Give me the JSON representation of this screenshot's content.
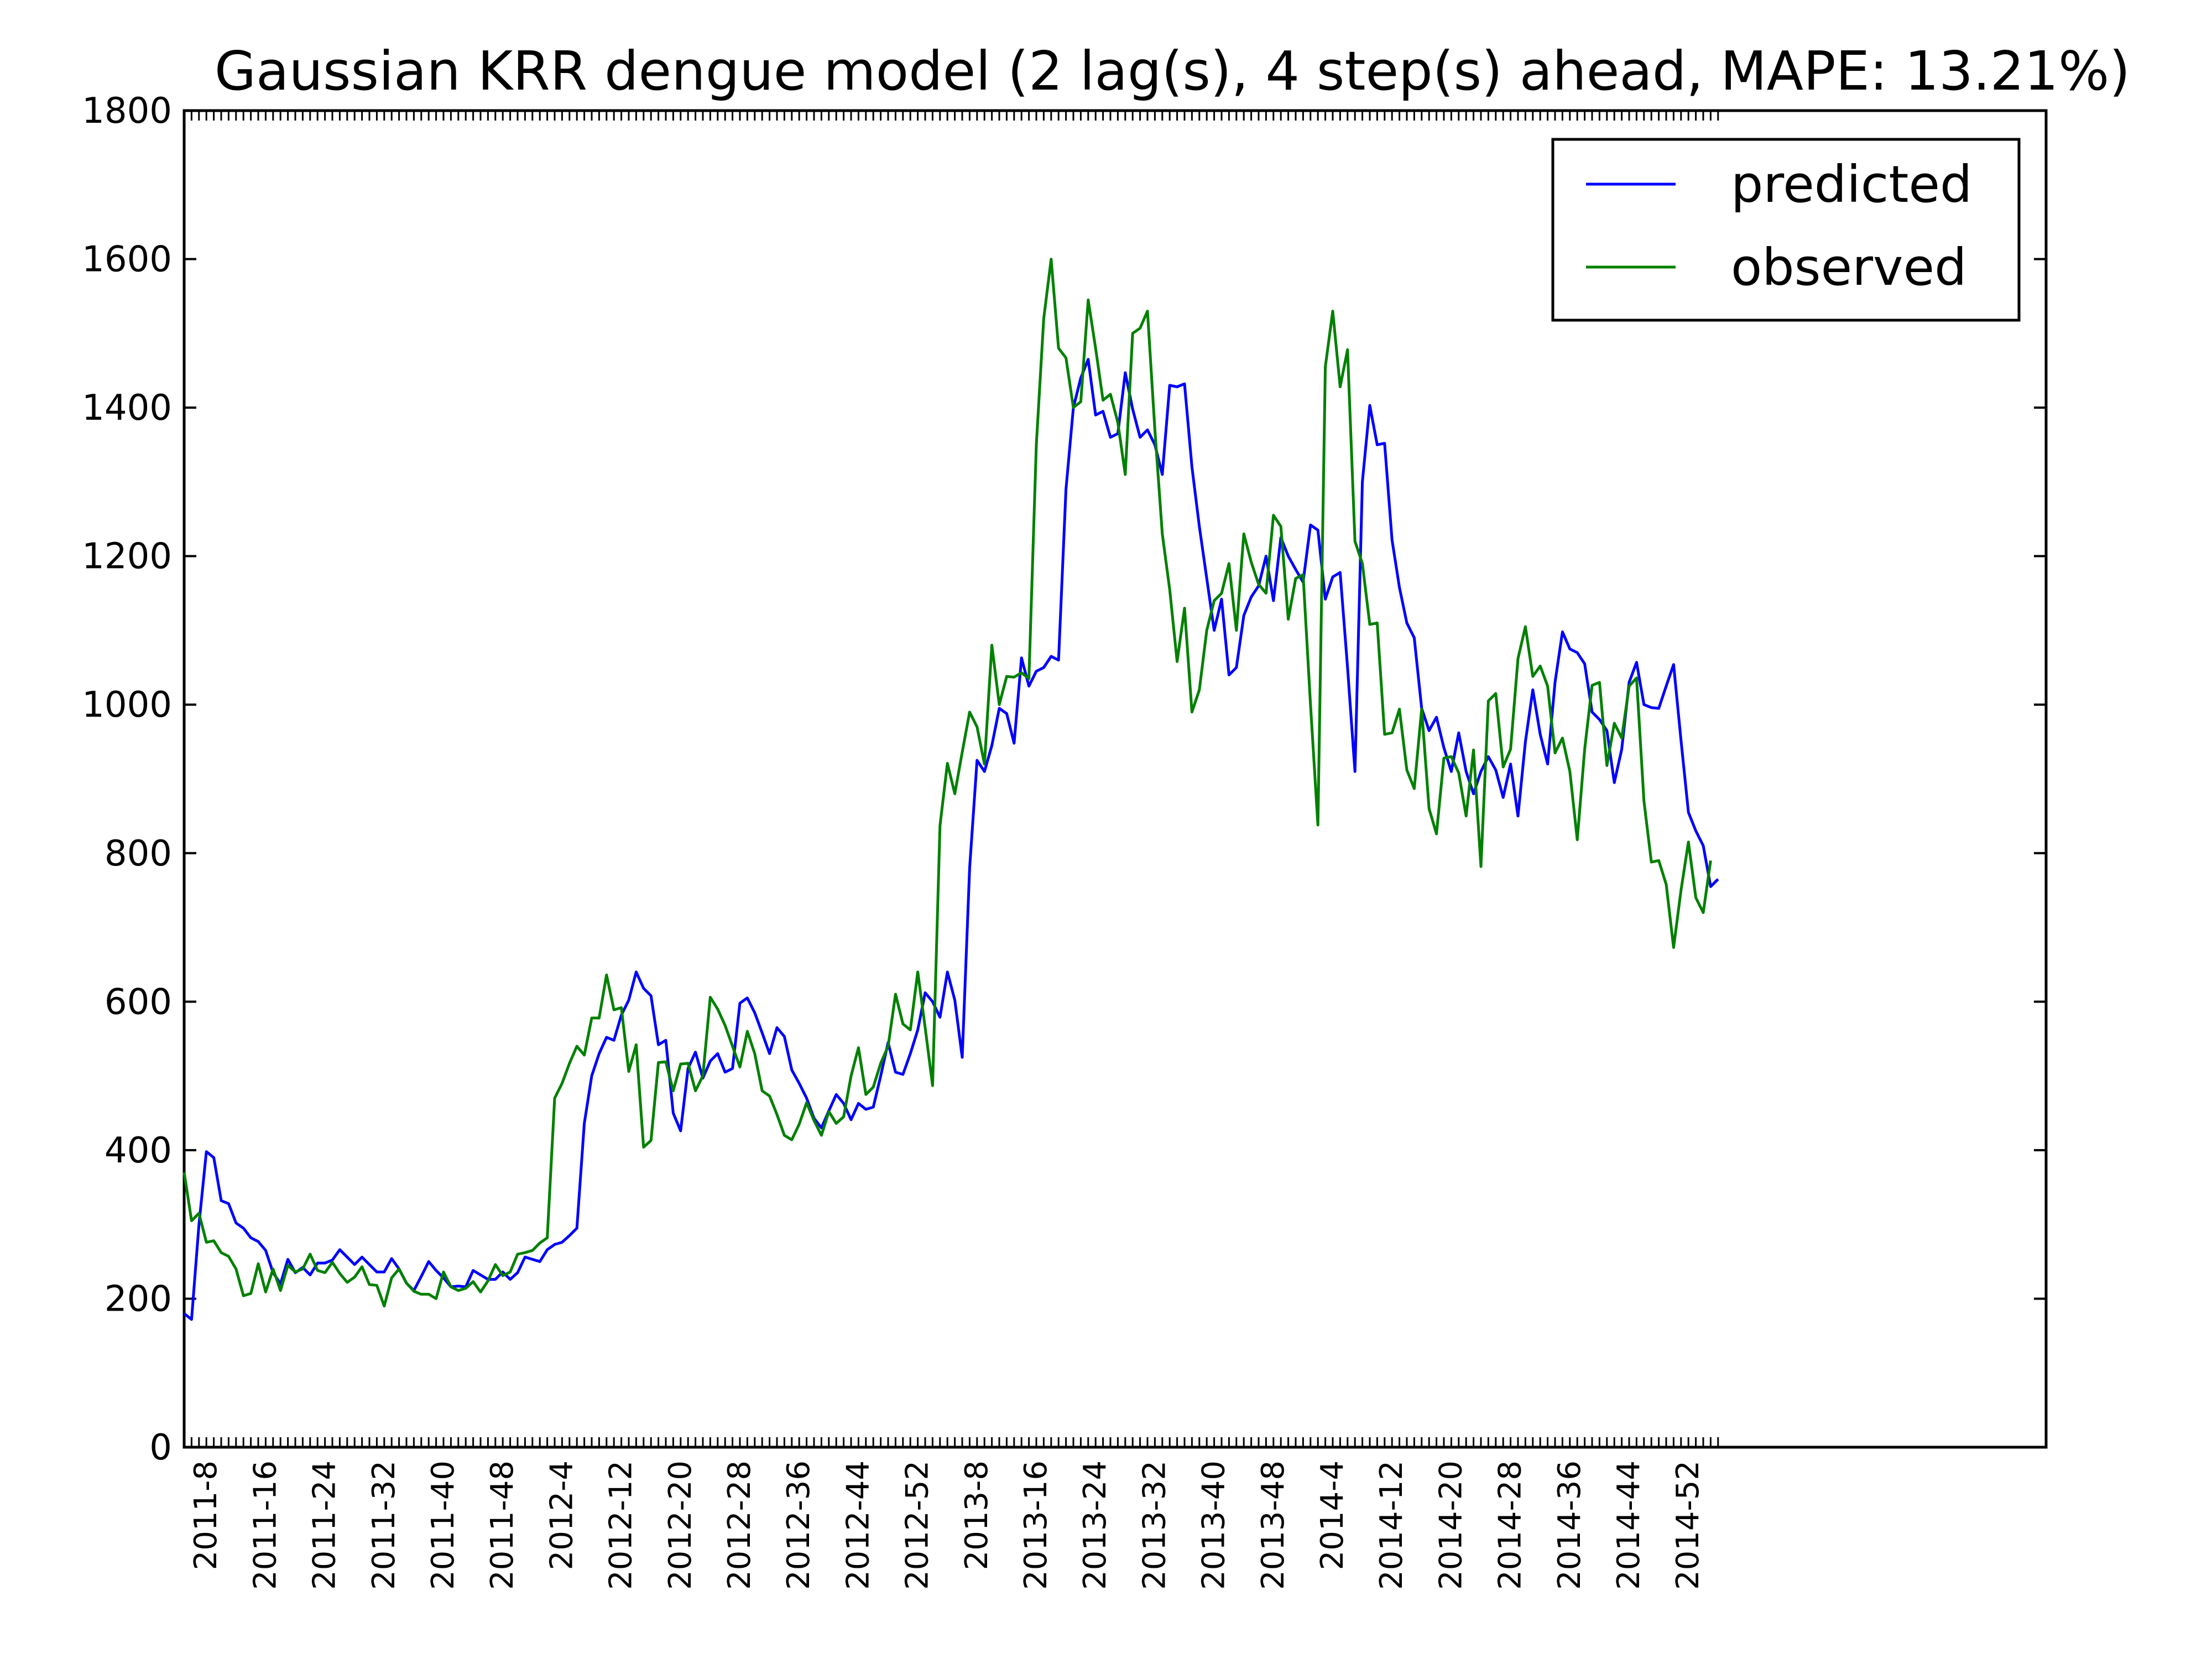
{
  "chart_data": {
    "type": "line",
    "title": "Gaussian KRR dengue model (2 lag(s), 4 step(s) ahead, MAPE: 13.21%)",
    "xlabel": "",
    "ylabel": "",
    "ylim": [
      0,
      1800
    ],
    "yticks": [
      0,
      200,
      400,
      600,
      800,
      1000,
      1200,
      1400,
      1600,
      1800
    ],
    "grid": false,
    "legend_position": "top-right",
    "x_start": "2011-5",
    "x_tick_labels": [
      "2011-8",
      "2011-16",
      "2011-24",
      "2011-32",
      "2011-40",
      "2011-48",
      "2012-4",
      "2012-12",
      "2012-20",
      "2012-28",
      "2012-36",
      "2012-44",
      "2012-52",
      "2013-8",
      "2013-16",
      "2013-24",
      "2013-32",
      "2013-40",
      "2013-48",
      "2014-4",
      "2014-12",
      "2014-20",
      "2014-28",
      "2014-36",
      "2014-44",
      "2014-52"
    ],
    "series": [
      {
        "name": "predicted",
        "color": "#0000ff",
        "values": [
          180,
          172,
          300,
          398,
          390,
          332,
          328,
          302,
          295,
          282,
          277,
          265,
          235,
          220,
          253,
          235,
          242,
          232,
          248,
          248,
          252,
          266,
          256,
          246,
          256,
          246,
          236,
          236,
          254,
          240,
          221,
          211,
          230,
          250,
          238,
          228,
          216,
          217,
          216,
          238,
          232,
          226,
          226,
          236,
          226,
          235,
          256,
          253,
          250,
          266,
          273,
          276,
          285,
          295,
          436,
          500,
          530,
          552,
          548,
          582,
          602,
          640,
          618,
          608,
          542,
          548,
          450,
          426,
          510,
          532,
          497,
          520,
          530,
          505,
          510,
          598,
          605,
          585,
          558,
          530,
          565,
          553,
          508,
          490,
          470,
          443,
          430,
          453,
          475,
          463,
          441,
          463,
          455,
          458,
          500,
          545,
          505,
          502,
          530,
          562,
          612,
          600,
          579,
          640,
          602,
          525,
          780,
          925,
          910,
          945,
          995,
          988,
          948,
          1063,
          1025,
          1045,
          1050,
          1065,
          1060,
          1290,
          1400,
          1440,
          1465,
          1390,
          1395,
          1360,
          1365,
          1447,
          1398,
          1360,
          1370,
          1350,
          1310,
          1430,
          1428,
          1432,
          1320,
          1240,
          1170,
          1100,
          1142,
          1040,
          1050,
          1120,
          1145,
          1160,
          1200,
          1140,
          1225,
          1200,
          1182,
          1165,
          1242,
          1235,
          1142,
          1172,
          1178,
          1050,
          910,
          1300,
          1403,
          1350,
          1352,
          1222,
          1158,
          1110,
          1090,
          995,
          965,
          983,
          942,
          910,
          962,
          910,
          880,
          910,
          930,
          912,
          875,
          920,
          850,
          950,
          1020,
          960,
          920,
          1030,
          1098,
          1075,
          1070,
          1055,
          990,
          980,
          965,
          895,
          940,
          1030,
          1057,
          1000,
          996,
          995,
          1025,
          1054,
          952,
          855,
          830,
          810,
          755,
          765
        ]
      },
      {
        "name": "observed",
        "color": "#008000",
        "values": [
          370,
          305,
          315,
          276,
          278,
          262,
          257,
          240,
          204,
          207,
          247,
          209,
          240,
          211,
          245,
          236,
          240,
          260,
          238,
          235,
          249,
          234,
          222,
          229,
          243,
          219,
          218,
          190,
          228,
          240,
          221,
          210,
          206,
          206,
          200,
          236,
          216,
          211,
          214,
          223,
          209,
          224,
          246,
          231,
          236,
          260,
          262,
          265,
          275,
          282,
          470,
          490,
          517,
          540,
          528,
          578,
          578,
          636,
          589,
          592,
          506,
          542,
          404,
          413,
          518,
          519,
          480,
          516,
          517,
          480,
          500,
          606,
          590,
          568,
          540,
          512,
          560,
          530,
          480,
          473,
          448,
          420,
          414,
          435,
          464,
          440,
          420,
          452,
          436,
          445,
          500,
          538,
          475,
          485,
          517,
          540,
          610,
          570,
          562,
          640,
          565,
          487,
          837,
          921,
          880,
          936,
          990,
          970,
          920,
          1080,
          1000,
          1038,
          1037,
          1043,
          1035,
          1350,
          1520,
          1600,
          1480,
          1467,
          1400,
          1408,
          1545,
          1480,
          1410,
          1418,
          1380,
          1310,
          1500,
          1507,
          1530,
          1370,
          1230,
          1155,
          1058,
          1130,
          990,
          1020,
          1100,
          1140,
          1150,
          1190,
          1100,
          1230,
          1192,
          1162,
          1150,
          1255,
          1240,
          1115,
          1170,
          1175,
          1000,
          838,
          1455,
          1530,
          1428,
          1478,
          1220,
          1190,
          1108,
          1110,
          960,
          962,
          994,
          912,
          887,
          994,
          860,
          826,
          928,
          930,
          908,
          850,
          939,
          782,
          1005,
          1015,
          916,
          940,
          1062,
          1105,
          1038,
          1052,
          1025,
          935,
          955,
          910,
          818,
          940,
          1026,
          1030,
          918,
          975,
          955,
          1025,
          1036,
          870,
          788,
          790,
          758,
          673,
          750,
          815,
          740,
          720,
          790
        ]
      }
    ]
  }
}
